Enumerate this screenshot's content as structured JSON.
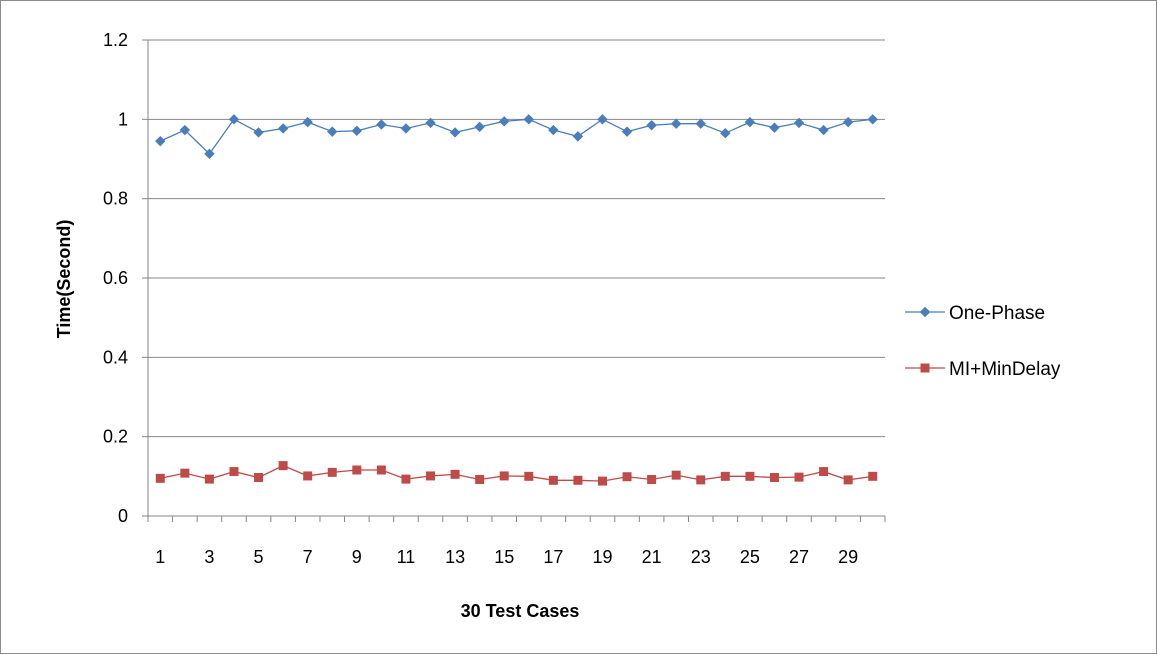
{
  "chart_data": {
    "type": "line",
    "title": "",
    "xlabel": "30 Test Cases",
    "ylabel": "Time(Second)",
    "ylim": [
      0,
      1.2
    ],
    "yticks": [
      "0",
      "0.2",
      "0.4",
      "0.6",
      "0.8",
      "1",
      "1.2"
    ],
    "x": [
      1,
      2,
      3,
      4,
      5,
      6,
      7,
      8,
      9,
      10,
      11,
      12,
      13,
      14,
      15,
      16,
      17,
      18,
      19,
      20,
      21,
      22,
      23,
      24,
      25,
      26,
      27,
      28,
      29,
      30
    ],
    "xtick_labels": [
      "1",
      "3",
      "5",
      "7",
      "9",
      "11",
      "13",
      "15",
      "17",
      "19",
      "21",
      "23",
      "25",
      "27",
      "29"
    ],
    "grid": "horizontal",
    "legend_position": "right",
    "series": [
      {
        "name": "One-Phase",
        "color": "#4a7ebb",
        "marker": "diamond",
        "values": [
          0.945,
          0.973,
          0.913,
          1.0,
          0.967,
          0.977,
          0.993,
          0.969,
          0.971,
          0.987,
          0.977,
          0.991,
          0.967,
          0.981,
          0.995,
          1.0,
          0.973,
          0.957,
          1.0,
          0.969,
          0.985,
          0.989,
          0.989,
          0.965,
          0.993,
          0.979,
          0.991,
          0.973,
          0.993,
          1.0
        ]
      },
      {
        "name": "MI+MinDelay",
        "color": "#be4b48",
        "marker": "square",
        "values": [
          0.095,
          0.108,
          0.093,
          0.112,
          0.097,
          0.127,
          0.101,
          0.11,
          0.116,
          0.116,
          0.093,
          0.101,
          0.105,
          0.092,
          0.101,
          0.1,
          0.09,
          0.09,
          0.088,
          0.099,
          0.092,
          0.103,
          0.091,
          0.1,
          0.1,
          0.097,
          0.098,
          0.112,
          0.091,
          0.1
        ]
      }
    ]
  }
}
